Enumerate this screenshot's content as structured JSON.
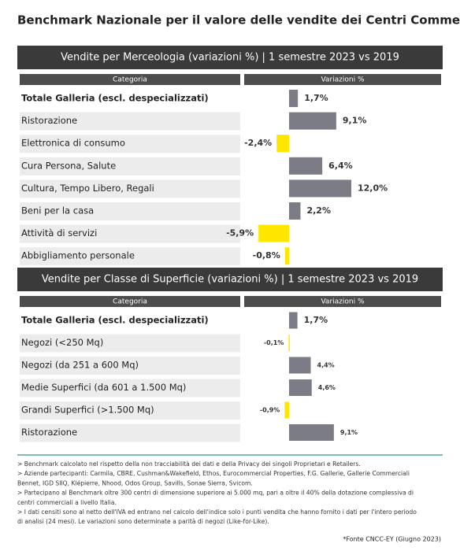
{
  "title": "Benchmark Nazionale per il valore delle vendite dei Centri Commerciali*",
  "chart_data": [
    {
      "type": "bar",
      "title": "Vendite per Merceologia (variazioni %) | 1 semestre 2023 vs 2019",
      "category_header": "Categoria",
      "value_header": "Variazioni %",
      "categories": [
        "Totale Galleria (escl. despecializzati)",
        "Ristorazione",
        "Elettronica di consumo",
        "Cura Persona, Salute",
        "Cultura, Tempo Libero, Regali",
        "Beni per la casa",
        "Attività di servizi",
        "Abbigliamento personale"
      ],
      "values": [
        1.7,
        9.1,
        -2.4,
        6.4,
        12.0,
        2.2,
        -5.9,
        -0.8
      ],
      "value_labels": [
        "1,7%",
        "9,1%",
        "-2,4%",
        "6,4%",
        "12,0%",
        "2,2%",
        "-5,9%",
        "-0,8%"
      ],
      "color": "#7c7c86",
      "negative_color": "#ffe600"
    },
    {
      "type": "bar",
      "title": "Vendite per Classe di Superficie (variazioni %) | 1 semestre 2023 vs 2019",
      "category_header": "Categoria",
      "value_header": "Variazioni %",
      "categories": [
        "Totale Galleria (escl. despecializzati)",
        "Negozi (<250 Mq)",
        "Negozi (da 251 a 600 Mq)",
        "Medie Superfici (da 601 a 1.500 Mq)",
        "Grandi Superfici (>1.500 Mq)",
        "Ristorazione"
      ],
      "values": [
        1.7,
        -0.1,
        4.4,
        4.6,
        -0.9,
        9.1
      ],
      "value_labels": [
        "1,7%",
        "-0,1%",
        "4,4%",
        "4,6%",
        "-0,9%",
        "9,1%"
      ],
      "color": "#7c7c86",
      "negative_color": "#ffe600"
    }
  ],
  "notes": [
    "> Benchmark calcolato nel rispetto della non tracciabilità dei dati e della Privacy dei singoli Proprietari e Retailers.",
    "> Aziende partecipanti: Carmila, CBRE, Cushman&Wakefield, Ethos, Eurocommercial Properties, F.G. Gallerie, Gallerie Commerciali",
    "Bennet, IGD SIIQ, Klépierre, Nhood, Odos Group, Savills, Sonae Sierra, Svicom.",
    "> Partecipano al Benchmark oltre 300 centri di dimensione superiore ai 5.000 mq, pari a oltre il 40% della dotazione complessiva di",
    "centri commerciali a livello Italia.",
    "> I dati censiti sono al netto dell'IVA ed entrano nel calcolo dell'indice solo i punti vendita che hanno fornito i dati per l'intero periodo",
    "di analisi (24 mesi). Le variazioni sono determinate a parità di negozi (Like-for-Like)."
  ],
  "source": "*Fonte CNCC-EY (Giugno 2023)"
}
